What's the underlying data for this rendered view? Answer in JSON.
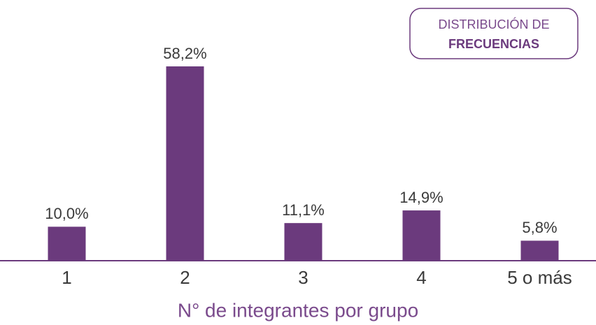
{
  "chart_data": {
    "type": "bar",
    "categories": [
      "1",
      "2",
      "3",
      "4",
      "5 o más"
    ],
    "values": [
      10.0,
      58.2,
      11.1,
      14.9,
      5.8
    ],
    "value_labels": [
      "10,0%",
      "58,2%",
      "11,1%",
      "14,9%",
      "5,8%"
    ],
    "color": "#6b3a7d",
    "x_label": "N° de integrantes por grupo",
    "badge": {
      "line1": "DISTRIBUCIÓN DE",
      "line2": "FRECUENCIAS"
    }
  }
}
